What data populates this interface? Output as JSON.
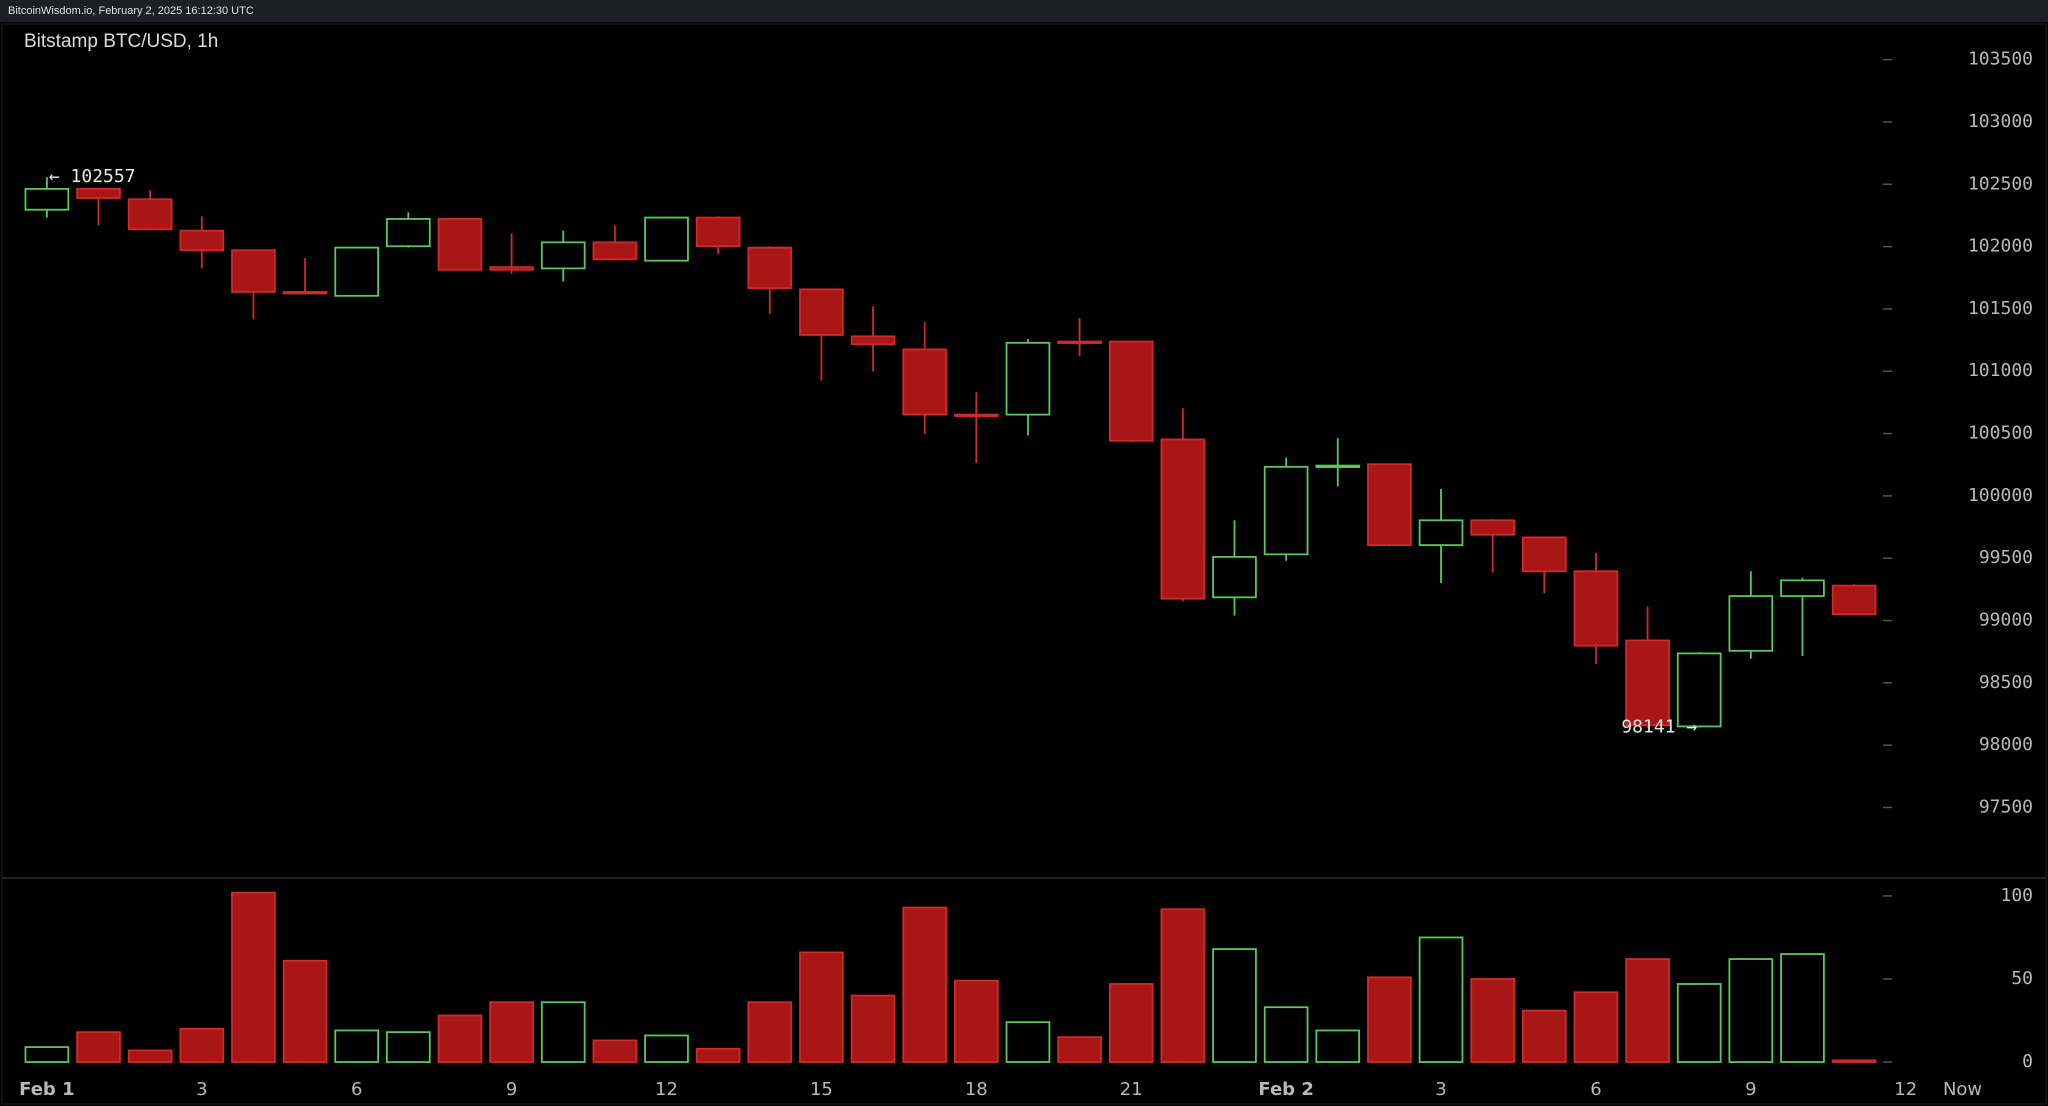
{
  "source": "BitcoinWisdom.io, February 2, 2025 16:12:30 UTC",
  "chart_data": [
    {
      "type": "candlestick",
      "title": "Bitstamp BTC/USD, 1h",
      "up_color": "#5cc85c",
      "down_color": "#a81616",
      "down_line_color": "#d02a2a",
      "x": [
        0,
        1,
        2,
        3,
        4,
        5,
        6,
        7,
        8,
        9,
        10,
        11,
        12,
        13,
        14,
        15,
        16,
        17,
        18,
        19,
        20,
        21,
        22,
        23,
        24,
        25,
        26,
        27,
        28,
        29,
        30,
        31,
        32,
        33,
        34,
        35
      ],
      "open": [
        102296,
        102463,
        102380,
        102128,
        101971,
        101636,
        101605,
        102003,
        102222,
        101835,
        101825,
        102034,
        101887,
        102233,
        101992,
        101657,
        101280,
        101175,
        100652,
        100652,
        101238,
        101238,
        100453,
        99186,
        99531,
        100233,
        100254,
        99605,
        99804,
        99667,
        99395,
        98840,
        98150,
        98757,
        99196,
        99280
      ],
      "high": [
        102557,
        102463,
        102453,
        102243,
        101971,
        101908,
        101992,
        102275,
        102230,
        102107,
        102128,
        102170,
        102240,
        102243,
        102003,
        101657,
        101521,
        101395,
        100830,
        101259,
        101427,
        101248,
        100704,
        99804,
        100306,
        100463,
        100254,
        100055,
        99815,
        99667,
        99542,
        99113,
        98746,
        99395,
        99343,
        99290
      ],
      "low": [
        102233,
        102170,
        102139,
        101825,
        101416,
        101625,
        101605,
        101992,
        101814,
        101783,
        101720,
        101898,
        101887,
        101940,
        101458,
        100924,
        100997,
        100495,
        100264,
        100484,
        101123,
        100432,
        99154,
        99039,
        99479,
        100076,
        99594,
        99301,
        99385,
        99217,
        98652,
        98141,
        98141,
        98694,
        98715,
        99050
      ],
      "close": [
        102463,
        102390,
        102139,
        101971,
        101636,
        101625,
        101992,
        102222,
        101814,
        101814,
        102034,
        101898,
        102233,
        102003,
        101667,
        101291,
        101217,
        100652,
        100641,
        101228,
        101228,
        100442,
        99175,
        99510,
        100233,
        100243,
        99605,
        99804,
        99688,
        99395,
        98798,
        98160,
        98736,
        99196,
        99322,
        99050
      ],
      "xlim": [
        -0.85,
        38.6
      ],
      "ylim": [
        96950,
        103770
      ],
      "yticks": [
        97500,
        98000,
        98500,
        99000,
        99500,
        100000,
        100500,
        101000,
        101500,
        102000,
        102500,
        103000,
        103500
      ],
      "annotations": [
        {
          "text": "← 102557",
          "x": 0,
          "y": 102557,
          "anchor": "start"
        },
        {
          "text": "98141 →",
          "x": 32,
          "y": 98141,
          "anchor": "end"
        }
      ]
    },
    {
      "type": "bar",
      "x": [
        0,
        1,
        2,
        3,
        4,
        5,
        6,
        7,
        8,
        9,
        10,
        11,
        12,
        13,
        14,
        15,
        16,
        17,
        18,
        19,
        20,
        21,
        22,
        23,
        24,
        25,
        26,
        27,
        28,
        29,
        30,
        31,
        32,
        33,
        34,
        35
      ],
      "values": [
        9,
        18,
        7,
        20,
        102,
        61,
        19,
        18,
        28,
        36,
        36,
        13,
        16,
        8,
        36,
        66,
        40,
        93,
        49,
        24,
        15,
        47,
        92,
        68,
        33,
        19,
        51,
        75,
        50,
        31,
        42,
        62,
        47,
        62,
        65,
        1
      ],
      "xlim": [
        -0.85,
        38.6
      ],
      "ylim": [
        -5.4,
        110.8
      ],
      "yticks": [
        0,
        50,
        100
      ],
      "xticks": [
        {
          "value": 0,
          "label": "Feb 1"
        },
        3,
        6,
        9,
        12,
        15,
        18,
        21,
        {
          "value": 24,
          "label": "Feb 2"
        },
        {
          "value": 27,
          "label": "3"
        },
        {
          "value": 30,
          "label": "6"
        },
        {
          "value": 33,
          "label": "9"
        },
        {
          "value": 36,
          "label": "12"
        },
        {
          "value": 37.1,
          "label": "Now"
        }
      ]
    }
  ]
}
